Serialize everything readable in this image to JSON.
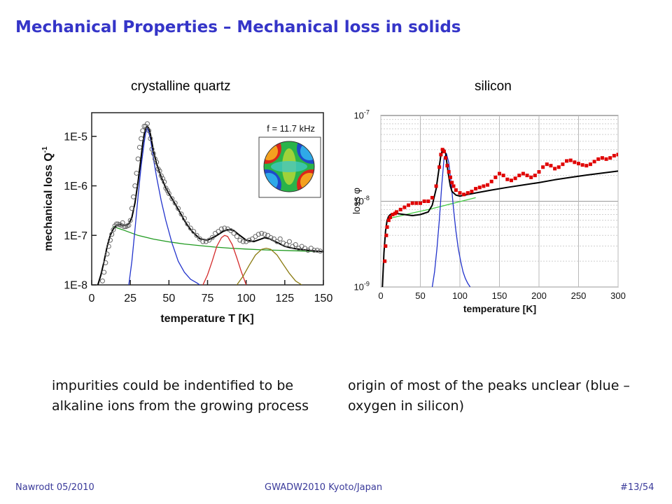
{
  "slide": {
    "title": "Mechanical Properties – Mechanical loss in solids"
  },
  "panels": {
    "left_label": "crystalline quartz",
    "right_label": "silicon"
  },
  "captions": {
    "left": "impurities could be indentified to be alkaline ions from the growing process",
    "right": "origin of most of the peaks unclear (blue – oxygen in silicon)"
  },
  "footer": {
    "author": "Nawrodt 05/2010",
    "event": "GWADW2010 Kyoto/Japan",
    "page": "#13/54"
  },
  "chart_data": [
    {
      "type": "scatter",
      "panel": "crystalline quartz",
      "annotation": "f = 11.7 kHz",
      "xlabel": "temperature T [K]",
      "ylabel": "mechanical loss Q",
      "ylabel_superscript": "-1",
      "xlim": [
        0,
        150
      ],
      "ylim": [
        1e-08,
        3e-05
      ],
      "yscale": "log",
      "xticks": [
        0,
        25,
        50,
        75,
        100,
        125,
        150
      ],
      "yticks": [
        {
          "value": 1e-08,
          "label": "1E-8"
        },
        {
          "value": 1e-07,
          "label": "1E-7"
        },
        {
          "value": 1e-06,
          "label": "1E-6"
        },
        {
          "value": 1e-05,
          "label": "1E-5"
        }
      ],
      "grid": false,
      "inset": "mode shape",
      "colors": {
        "points": "#666666",
        "fit": "#000000",
        "background": "#1f9a1f",
        "peak_blue": "#2233cc",
        "peak_red": "#d42a2a",
        "peak_olive": "#8a7a10"
      },
      "series": [
        {
          "role": "points",
          "x": [
            7,
            8,
            9,
            10,
            11,
            12,
            13,
            14,
            15,
            16,
            17,
            18,
            19,
            20,
            21,
            22,
            23,
            24,
            25,
            26,
            27,
            28,
            29,
            30,
            31,
            32,
            33,
            34,
            35,
            36,
            37,
            38,
            39,
            40,
            41,
            42,
            43,
            44,
            45,
            46,
            47,
            48,
            49,
            50,
            52,
            54,
            56,
            58,
            60,
            62,
            64,
            66,
            68,
            70,
            72,
            74,
            76,
            78,
            80,
            82,
            84,
            86,
            88,
            90,
            92,
            94,
            96,
            98,
            100,
            102,
            104,
            106,
            108,
            110,
            112,
            114,
            116,
            118,
            120,
            122,
            124,
            126,
            128,
            130,
            132,
            134,
            136,
            138,
            140,
            142,
            144,
            146,
            148
          ],
          "y": [
            1.2e-08,
            1.8e-08,
            2.8e-08,
            4.2e-08,
            6e-08,
            8e-08,
            1.05e-07,
            1.3e-07,
            1.55e-07,
            1.7e-07,
            1.7e-07,
            1.65e-07,
            1.6e-07,
            1.8e-07,
            1.5e-07,
            1.5e-07,
            1.55e-07,
            1.6e-07,
            2e-07,
            3.5e-07,
            6e-07,
            1e-06,
            1.8e-06,
            3.5e-06,
            6e-06,
            9e-06,
            1.3e-05,
            1.6e-05,
            1.6e-05,
            1.8e-05,
            1.3e-05,
            9e-06,
            5.5e-06,
            4.5e-06,
            3.5e-06,
            3e-06,
            2.2e-06,
            2e-06,
            1.6e-06,
            1.4e-06,
            1.2e-06,
            9e-07,
            8e-07,
            7e-07,
            5.5e-07,
            4.5e-07,
            3.5e-07,
            2.7e-07,
            2.2e-07,
            1.7e-07,
            1.4e-07,
            1.2e-07,
            1e-07,
            8.5e-08,
            7.5e-08,
            7.5e-08,
            8e-08,
            9e-08,
            1.1e-07,
            1.2e-07,
            1.35e-07,
            1.4e-07,
            1.35e-07,
            1.25e-07,
            1.1e-07,
            9.5e-08,
            8e-08,
            7.5e-08,
            7.5e-08,
            8e-08,
            8.5e-08,
            9.5e-08,
            1.05e-07,
            1.1e-07,
            1.05e-07,
            1e-07,
            9e-08,
            8.5e-08,
            7.5e-08,
            8.5e-08,
            7e-08,
            6.5e-08,
            7.5e-08,
            6e-08,
            6.5e-08,
            5.5e-08,
            6e-08,
            5.5e-08,
            5e-08,
            5.5e-08,
            5e-08,
            5e-08,
            4.8e-08
          ]
        },
        {
          "role": "fit",
          "x": [
            4,
            6,
            8,
            10,
            12,
            14,
            16,
            18,
            20,
            22,
            24,
            26,
            28,
            30,
            32,
            33,
            34,
            35,
            36,
            37,
            38,
            40,
            42,
            45,
            48,
            50,
            52,
            55,
            58,
            60,
            62,
            65,
            70,
            75,
            80,
            85,
            88,
            90,
            92,
            95,
            100,
            105,
            110,
            112,
            115,
            120,
            125,
            130,
            135,
            140,
            145,
            150
          ],
          "y": [
            1e-08,
            1.6e-08,
            3e-08,
            6e-08,
            1e-07,
            1.35e-07,
            1.6e-07,
            1.65e-07,
            1.6e-07,
            1.6e-07,
            1.7e-07,
            2.3e-07,
            4.5e-07,
            1.2e-06,
            3.8e-06,
            7e-06,
            1.1e-05,
            1.5e-05,
            1.6e-05,
            1.45e-05,
            1.1e-05,
            5e-06,
            2.8e-06,
            1.5e-06,
            9e-07,
            7e-07,
            5.5e-07,
            3.8e-07,
            2.6e-07,
            2e-07,
            1.6e-07,
            1.2e-07,
            8.5e-08,
            8e-08,
            9.5e-08,
            1.2e-07,
            1.3e-07,
            1.3e-07,
            1.25e-07,
            1.05e-07,
            8e-08,
            7.5e-08,
            8.5e-08,
            9e-08,
            8.5e-08,
            7.2e-08,
            6e-08,
            5.5e-08,
            5.2e-08,
            5e-08,
            4.8e-08,
            4.7e-08
          ]
        },
        {
          "role": "background",
          "x": [
            14,
            20,
            30,
            40,
            50,
            60,
            70,
            80,
            90,
            100,
            110,
            120,
            130,
            140,
            150
          ],
          "y": [
            1.5e-07,
            1.3e-07,
            1e-07,
            8.4e-08,
            7.4e-08,
            6.7e-08,
            6.2e-08,
            5.8e-08,
            5.5e-08,
            5.3e-08,
            5.1e-08,
            5e-08,
            4.9e-08,
            4.8e-08,
            4.7e-08
          ]
        },
        {
          "role": "peak-blue",
          "x": [
            24,
            26,
            28,
            30,
            32,
            34,
            35,
            36,
            38,
            40,
            42,
            45,
            48,
            52,
            56,
            60,
            64,
            68,
            70
          ],
          "y": [
            1e-08,
            3e-08,
            1.3e-07,
            6e-07,
            2.5e-06,
            7.5e-06,
            1.2e-05,
            1.5e-05,
            9e-06,
            3.5e-06,
            1.5e-06,
            5e-07,
            2e-07,
            7e-08,
            3e-08,
            1.8e-08,
            1.3e-08,
            1.1e-08,
            1e-08
          ]
        },
        {
          "role": "peak-red",
          "x": [
            72,
            75,
            78,
            81,
            84,
            86,
            88,
            91,
            94,
            97,
            100
          ],
          "y": [
            1e-08,
            1.6e-08,
            3e-08,
            6e-08,
            9e-08,
            1e-07,
            9.5e-08,
            6.5e-08,
            3.5e-08,
            1.8e-08,
            1e-08
          ]
        },
        {
          "role": "peak-olive",
          "x": [
            94,
            98,
            102,
            106,
            110,
            113,
            116,
            120,
            124,
            128,
            132,
            136
          ],
          "y": [
            1e-08,
            1.5e-08,
            2.5e-08,
            4e-08,
            5.2e-08,
            5.5e-08,
            5.2e-08,
            4e-08,
            2.6e-08,
            1.7e-08,
            1.2e-08,
            1e-08
          ]
        }
      ]
    },
    {
      "type": "scatter",
      "panel": "silicon",
      "xlabel": "temperature [K]",
      "ylabel": "loss φ",
      "xlim": [
        0,
        300
      ],
      "ylim": [
        1e-09,
        1e-07
      ],
      "yscale": "log",
      "xticks": [
        0,
        50,
        100,
        150,
        200,
        250,
        300
      ],
      "yticks": [
        {
          "value": 1e-09,
          "label": "10",
          "exp": "-9"
        },
        {
          "value": 1e-08,
          "label": "10",
          "exp": "-8"
        },
        {
          "value": 1e-07,
          "label": "10",
          "exp": "-7"
        }
      ],
      "grid": true,
      "colors": {
        "points": "#e00000",
        "fit": "#000000",
        "background": "#44cc44",
        "peak_blue": "#2233cc"
      },
      "series": [
        {
          "role": "points",
          "x": [
            5,
            6,
            7,
            8,
            10,
            12,
            15,
            18,
            20,
            25,
            30,
            35,
            40,
            45,
            50,
            55,
            60,
            65,
            70,
            74,
            76,
            78,
            80,
            82,
            84,
            86,
            88,
            90,
            92,
            95,
            100,
            105,
            110,
            115,
            120,
            125,
            130,
            135,
            140,
            145,
            150,
            155,
            160,
            165,
            170,
            175,
            180,
            185,
            190,
            195,
            200,
            205,
            210,
            215,
            220,
            225,
            230,
            235,
            240,
            245,
            250,
            255,
            260,
            265,
            270,
            275,
            280,
            285,
            290,
            295,
            300
          ],
          "y": [
            2e-09,
            3e-09,
            4e-09,
            5e-09,
            6e-09,
            6.5e-09,
            7e-09,
            7.2e-09,
            7.5e-09,
            8e-09,
            8.5e-09,
            9e-09,
            9.5e-09,
            9.5e-09,
            9.5e-09,
            1e-08,
            1e-08,
            1.1e-08,
            1.5e-08,
            2.5e-08,
            3.5e-08,
            4e-08,
            3.8e-08,
            3.2e-08,
            2.6e-08,
            2.2e-08,
            1.9e-08,
            1.65e-08,
            1.5e-08,
            1.35e-08,
            1.25e-08,
            1.2e-08,
            1.25e-08,
            1.3e-08,
            1.4e-08,
            1.45e-08,
            1.5e-08,
            1.55e-08,
            1.7e-08,
            1.9e-08,
            2.1e-08,
            2e-08,
            1.8e-08,
            1.75e-08,
            1.85e-08,
            2e-08,
            2.1e-08,
            2e-08,
            1.9e-08,
            2e-08,
            2.2e-08,
            2.5e-08,
            2.7e-08,
            2.6e-08,
            2.4e-08,
            2.5e-08,
            2.7e-08,
            2.95e-08,
            3e-08,
            2.85e-08,
            2.75e-08,
            2.65e-08,
            2.6e-08,
            2.7e-08,
            2.9e-08,
            3.1e-08,
            3.2e-08,
            3.1e-08,
            3.2e-08,
            3.4e-08,
            3.5e-08
          ]
        },
        {
          "role": "fit",
          "x": [
            2,
            4,
            6,
            8,
            10,
            12,
            15,
            20,
            30,
            40,
            50,
            60,
            65,
            70,
            73,
            76,
            78,
            80,
            82,
            84,
            86,
            88,
            90,
            95,
            100,
            110,
            120,
            140,
            160,
            180,
            200,
            220,
            240,
            260,
            280,
            300
          ],
          "y": [
            1e-09,
            2.5e-09,
            4.5e-09,
            6e-09,
            6.7e-09,
            7e-09,
            7.2e-09,
            7.2e-09,
            7e-09,
            6.8e-09,
            7e-09,
            7.5e-09,
            9e-09,
            1.4e-08,
            2.2e-08,
            3.5e-08,
            3.9e-08,
            4e-08,
            3.6e-08,
            2.6e-08,
            1.9e-08,
            1.5e-08,
            1.3e-08,
            1.18e-08,
            1.15e-08,
            1.2e-08,
            1.25e-08,
            1.35e-08,
            1.45e-08,
            1.55e-08,
            1.65e-08,
            1.78e-08,
            1.9e-08,
            2.02e-08,
            2.13e-08,
            2.25e-08
          ]
        },
        {
          "role": "background",
          "x": [
            10,
            20,
            40,
            60,
            80,
            100,
            120
          ],
          "y": [
            6.3e-09,
            6.6e-09,
            7.3e-09,
            8e-09,
            8.9e-09,
            9.9e-09,
            1.1e-08
          ]
        },
        {
          "role": "peak-blue",
          "x": [
            65,
            68,
            71,
            74,
            77,
            80,
            83,
            86,
            89,
            92,
            95,
            98,
            101,
            104,
            107,
            110,
            113
          ],
          "y": [
            1e-09,
            1.5e-09,
            2.8e-09,
            6e-09,
            1.5e-08,
            3.2e-08,
            3.6e-08,
            2.8e-08,
            1.6e-08,
            8e-09,
            4.5e-09,
            2.8e-09,
            2e-09,
            1.5e-09,
            1.25e-09,
            1.1e-09,
            1e-09
          ]
        }
      ]
    }
  ]
}
